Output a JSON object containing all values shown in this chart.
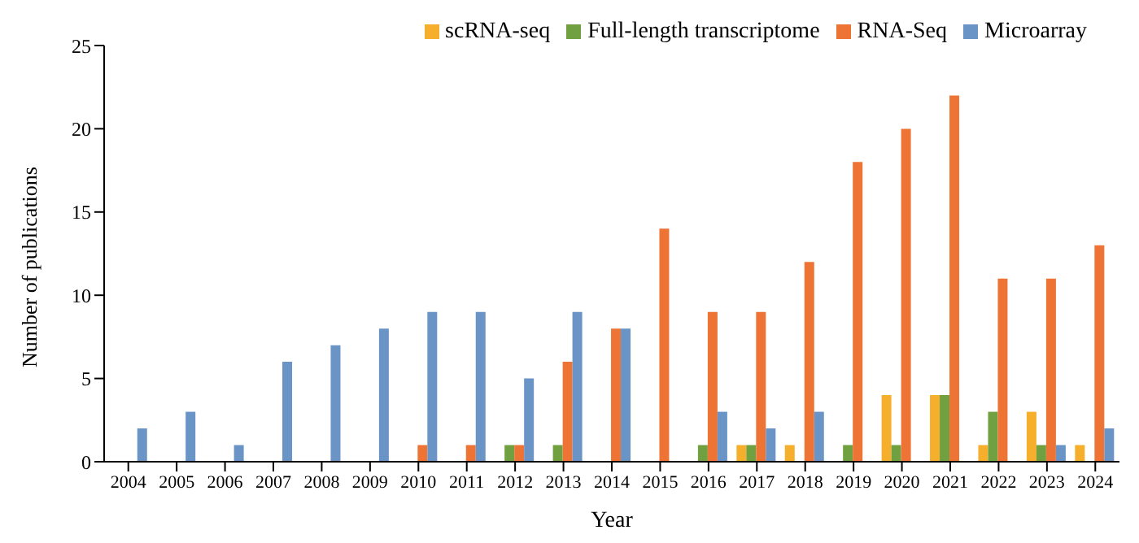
{
  "chart_data": {
    "type": "bar",
    "xlabel": "Year",
    "ylabel": "Number of publications",
    "categories": [
      "2004",
      "2005",
      "2006",
      "2007",
      "2008",
      "2009",
      "2010",
      "2011",
      "2012",
      "2013",
      "2014",
      "2015",
      "2016",
      "2017",
      "2018",
      "2019",
      "2020",
      "2021",
      "2022",
      "2023",
      "2024"
    ],
    "series": [
      {
        "name": "scRNA-seq",
        "color": "#f6ae2d",
        "values": [
          0,
          0,
          0,
          0,
          0,
          0,
          0,
          0,
          0,
          0,
          0,
          0,
          0,
          1,
          1,
          0,
          4,
          4,
          1,
          3,
          1
        ]
      },
      {
        "name": "Full-length transcriptome",
        "color": "#70a03f",
        "values": [
          0,
          0,
          0,
          0,
          0,
          0,
          0,
          0,
          1,
          1,
          0,
          0,
          1,
          1,
          0,
          1,
          1,
          4,
          3,
          1,
          0
        ]
      },
      {
        "name": "RNA-Seq",
        "color": "#ed7434",
        "values": [
          0,
          0,
          0,
          0,
          0,
          0,
          1,
          1,
          1,
          6,
          8,
          14,
          9,
          9,
          12,
          18,
          20,
          22,
          11,
          11,
          13
        ]
      },
      {
        "name": "Microarray",
        "color": "#6a93c6",
        "values": [
          2,
          3,
          1,
          6,
          7,
          8,
          9,
          9,
          5,
          9,
          8,
          0,
          3,
          2,
          3,
          0,
          0,
          0,
          0,
          1,
          2
        ]
      }
    ],
    "ylim": [
      0,
      25
    ],
    "yticks": [
      0,
      5,
      10,
      15,
      20,
      25
    ],
    "legend": "top right"
  }
}
